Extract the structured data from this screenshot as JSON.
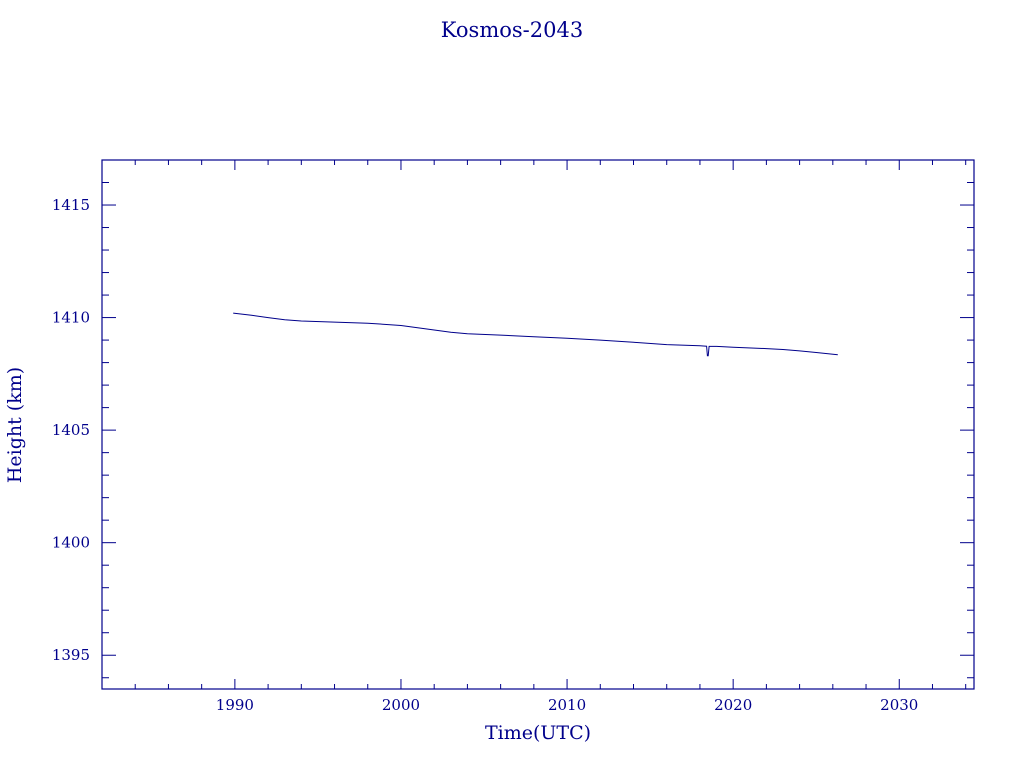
{
  "chart_data": {
    "type": "line",
    "title": "Kosmos-2043",
    "xlabel": "Time(UTC)",
    "ylabel": "Height (km)",
    "xlim": [
      1982,
      2034.5
    ],
    "ylim": [
      1393.5,
      1417
    ],
    "xticks": [
      1990,
      2000,
      2010,
      2020,
      2030
    ],
    "yticks": [
      1395,
      1400,
      1405,
      1410,
      1415
    ],
    "grid": false,
    "color": "#00008b",
    "series": [
      {
        "x": [
          1989.9,
          1991,
          1992,
          1993,
          1994,
          1996,
          1998,
          2000,
          2001,
          2002,
          2003,
          2004,
          2006,
          2008,
          2010,
          2012,
          2014,
          2016,
          2018,
          2018.4,
          2018.45,
          2018.5,
          2018.55,
          2019,
          2020,
          2022,
          2023,
          2024,
          2025,
          2026.3
        ],
        "y": [
          1410.2,
          1410.1,
          1410.0,
          1409.9,
          1409.85,
          1409.8,
          1409.75,
          1409.65,
          1409.55,
          1409.45,
          1409.35,
          1409.28,
          1409.22,
          1409.15,
          1409.08,
          1409.0,
          1408.9,
          1408.8,
          1408.75,
          1408.73,
          1408.3,
          1408.3,
          1408.72,
          1408.72,
          1408.68,
          1408.62,
          1408.58,
          1408.52,
          1408.45,
          1408.35
        ]
      }
    ]
  }
}
